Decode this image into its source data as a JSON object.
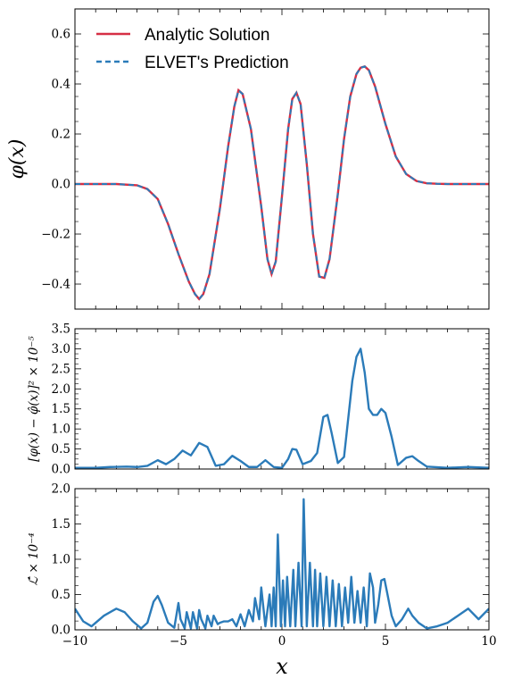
{
  "chart_data": [
    {
      "type": "line",
      "ylabel": "φ(x)",
      "xlim": [
        -10,
        10
      ],
      "ylim": [
        -0.5,
        0.7
      ],
      "yticks": [
        -0.4,
        -0.2,
        0.0,
        0.2,
        0.4,
        0.6
      ],
      "ytick_labels": [
        "−0.4",
        "−0.2",
        "0.0",
        "0.2",
        "0.4",
        "0.6"
      ],
      "legend_position": "top-left",
      "legend": [
        "Analytic Solution",
        "ELVET's Prediction"
      ],
      "series": [
        {
          "name": "Analytic Solution",
          "color": "#d62f45",
          "style": "solid"
        },
        {
          "name": "ELVET's Prediction",
          "color": "#2b7bb9",
          "style": "dashed"
        }
      ],
      "x": [
        -10,
        -9,
        -8,
        -7,
        -6.5,
        -6,
        -5.5,
        -5,
        -4.5,
        -4.2,
        -4,
        -3.8,
        -3.5,
        -3,
        -2.6,
        -2.3,
        -2.1,
        -1.9,
        -1.5,
        -1,
        -0.7,
        -0.5,
        -0.3,
        0,
        0.3,
        0.5,
        0.7,
        0.9,
        1.2,
        1.5,
        1.8,
        2.05,
        2.3,
        2.7,
        3,
        3.3,
        3.6,
        3.8,
        4.0,
        4.2,
        4.5,
        5,
        5.5,
        6,
        6.5,
        7,
        7.5,
        8,
        9,
        10
      ],
      "y": [
        0,
        0,
        0,
        -0.005,
        -0.02,
        -0.06,
        -0.16,
        -0.28,
        -0.39,
        -0.44,
        -0.46,
        -0.44,
        -0.36,
        -0.1,
        0.15,
        0.31,
        0.375,
        0.36,
        0.22,
        -0.09,
        -0.3,
        -0.36,
        -0.31,
        -0.05,
        0.22,
        0.34,
        0.365,
        0.32,
        0.08,
        -0.2,
        -0.37,
        -0.375,
        -0.3,
        -0.04,
        0.18,
        0.35,
        0.44,
        0.465,
        0.47,
        0.455,
        0.39,
        0.24,
        0.11,
        0.04,
        0.012,
        0.003,
        0.001,
        0,
        0,
        0
      ]
    },
    {
      "type": "line",
      "ylabel": "[φ(x) − φ̂(x)]² × 10⁻⁵",
      "xlim": [
        -10,
        10
      ],
      "ylim": [
        0,
        3.5
      ],
      "yticks": [
        0.0,
        0.5,
        1.0,
        1.5,
        2.0,
        2.5,
        3.0,
        3.5
      ],
      "ytick_labels": [
        "0.0",
        "0.5",
        "1.0",
        "1.5",
        "2.0",
        "2.5",
        "3.0",
        "3.5"
      ],
      "series": [
        {
          "name": "",
          "color": "#2b7bb9"
        }
      ],
      "x": [
        -10,
        -9,
        -8.3,
        -7.5,
        -7,
        -6.5,
        -6,
        -5.6,
        -5.2,
        -4.8,
        -4.4,
        -4.0,
        -3.6,
        -3.2,
        -2.8,
        -2.4,
        -2.0,
        -1.6,
        -1.2,
        -0.8,
        -0.4,
        0,
        0.3,
        0.5,
        0.7,
        1.0,
        1.4,
        1.7,
        2.0,
        2.2,
        2.4,
        2.7,
        3.0,
        3.4,
        3.6,
        3.8,
        4.0,
        4.2,
        4.4,
        4.6,
        4.8,
        5.0,
        5.3,
        5.6,
        6.0,
        6.3,
        6.6,
        7.0,
        8.0,
        9.0,
        10
      ],
      "y": [
        0.03,
        0.03,
        0.05,
        0.06,
        0.05,
        0.08,
        0.22,
        0.12,
        0.25,
        0.46,
        0.34,
        0.65,
        0.55,
        0.08,
        0.12,
        0.33,
        0.2,
        0.05,
        0.05,
        0.22,
        0.05,
        0.03,
        0.25,
        0.5,
        0.48,
        0.12,
        0.2,
        0.4,
        1.3,
        1.35,
        0.9,
        0.15,
        0.3,
        2.2,
        2.8,
        3.0,
        2.4,
        1.5,
        1.35,
        1.35,
        1.5,
        1.4,
        0.8,
        0.1,
        0.28,
        0.32,
        0.2,
        0.06,
        0.03,
        0.05,
        0.03
      ]
    },
    {
      "type": "line",
      "xlabel": "x",
      "ylabel": "ℒ̂ × 10⁻⁴",
      "xlim": [
        -10,
        10
      ],
      "ylim": [
        0,
        2.0
      ],
      "xticks": [
        -10,
        -5,
        0,
        5,
        10
      ],
      "xtick_labels": [
        "−10",
        "−5",
        "0",
        "5",
        "10"
      ],
      "yticks": [
        0.0,
        0.5,
        1.0,
        1.5,
        2.0
      ],
      "ytick_labels": [
        "0.0",
        "0.5",
        "1.0",
        "1.5",
        "2.0"
      ],
      "series": [
        {
          "name": "",
          "color": "#2b7bb9"
        }
      ],
      "x": [
        -10,
        -9.6,
        -9.2,
        -8.6,
        -8,
        -7.6,
        -7.2,
        -6.8,
        -6.5,
        -6.2,
        -6,
        -5.8,
        -5.5,
        -5.2,
        -5,
        -4.9,
        -4.7,
        -4.6,
        -4.4,
        -4.3,
        -4.1,
        -4.0,
        -3.9,
        -3.7,
        -3.6,
        -3.4,
        -3.3,
        -3.1,
        -3.0,
        -2.8,
        -2.6,
        -2.4,
        -2.2,
        -2.0,
        -1.8,
        -1.6,
        -1.4,
        -1.3,
        -1.1,
        -1.0,
        -0.8,
        -0.6,
        -0.5,
        -0.4,
        -0.3,
        -0.2,
        -0.05,
        0.05,
        0.15,
        0.25,
        0.4,
        0.55,
        0.65,
        0.8,
        0.95,
        1.05,
        1.2,
        1.35,
        1.5,
        1.6,
        1.7,
        1.85,
        2.0,
        2.15,
        2.3,
        2.45,
        2.6,
        2.75,
        2.9,
        3.05,
        3.2,
        3.35,
        3.5,
        3.65,
        3.8,
        3.95,
        4.1,
        4.25,
        4.4,
        4.5,
        4.65,
        4.8,
        4.95,
        5.1,
        5.3,
        5.5,
        5.8,
        6.1,
        6.3,
        6.6,
        7.0,
        7.5,
        8.0,
        8.5,
        9.0,
        9.5,
        10
      ],
      "y": [
        0.3,
        0.12,
        0.05,
        0.2,
        0.3,
        0.25,
        0.12,
        0.02,
        0.1,
        0.4,
        0.48,
        0.35,
        0.1,
        0.03,
        0.38,
        0.15,
        0.02,
        0.25,
        0.02,
        0.25,
        0.02,
        0.28,
        0.15,
        0.02,
        0.2,
        0.05,
        0.2,
        0.08,
        0.1,
        0.12,
        0.12,
        0.15,
        0.05,
        0.22,
        0.05,
        0.28,
        0.12,
        0.45,
        0.15,
        0.6,
        0.05,
        0.5,
        0.05,
        0.6,
        0.05,
        1.35,
        0.05,
        0.7,
        0.05,
        0.75,
        0.05,
        0.85,
        0.05,
        0.95,
        0.05,
        1.85,
        0.05,
        0.95,
        0.05,
        0.85,
        0.05,
        0.8,
        0.05,
        0.75,
        0.05,
        0.7,
        0.05,
        0.65,
        0.05,
        0.6,
        0.1,
        0.75,
        0.1,
        0.55,
        0.1,
        0.6,
        0.05,
        0.8,
        0.6,
        0.1,
        0.35,
        0.7,
        0.72,
        0.5,
        0.2,
        0.05,
        0.15,
        0.3,
        0.2,
        0.1,
        0.02,
        0.05,
        0.1,
        0.2,
        0.3,
        0.15,
        0.3
      ]
    }
  ]
}
